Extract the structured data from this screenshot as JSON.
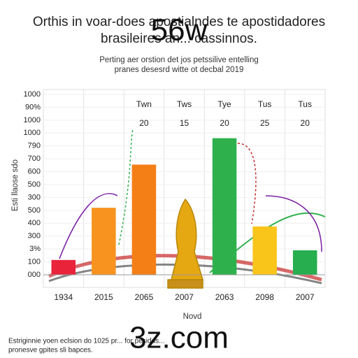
{
  "chart_data": {
    "type": "bar",
    "title": [
      "Orthis in voar-does apostialndes te apostidadores",
      "brasileires an... cassinnos."
    ],
    "subtitle": [
      "Perting aer orstion det jos petssilive entelling",
      "pranes desesrd witte ot decbal 2019"
    ],
    "watermarks": [
      "56w",
      "3z.com"
    ],
    "y_label": "Esti llaose sdo",
    "x_label": "Novd",
    "header_labels": [
      "Twn",
      "Tws",
      "Tye",
      "Tus",
      "Tus"
    ],
    "header_values": [
      20,
      15,
      20,
      25,
      20
    ],
    "footnote": [
      "Estriginnie yoen eclsion do 1025 pr... for pesidds...",
      "pronesve gpites sli bapces."
    ],
    "categories": [
      "1934",
      "2015",
      "2065",
      "2007",
      "2063",
      "2098",
      "2007"
    ],
    "values": [
      115,
      520,
      855,
      null,
      1060,
      375,
      190
    ],
    "colors": [
      "#e8233a",
      "#f7931e",
      "#f57f17",
      "#cccccc",
      "#2eb14d",
      "#f9c51b",
      "#27ae4f"
    ],
    "ylim": [
      0,
      1400
    ],
    "yticks": [
      {
        "value": 0,
        "label": "000"
      },
      100,
      {
        "value": 200,
        "label": "3%"
      },
      300,
      400,
      500,
      {
        "value": 600,
        "label": "300"
      },
      {
        "value": 700,
        "label": "500"
      },
      {
        "value": 800,
        "label": "600"
      },
      {
        "value": 900,
        "label": "700"
      },
      {
        "value": 1000,
        "label": "790"
      },
      {
        "value": 1100,
        "label": "1000"
      },
      {
        "value": 1200,
        "label": "1000"
      },
      {
        "value": 1300,
        "label": "90%"
      },
      {
        "value": 1400,
        "label": "1000"
      }
    ],
    "grid": true
  }
}
